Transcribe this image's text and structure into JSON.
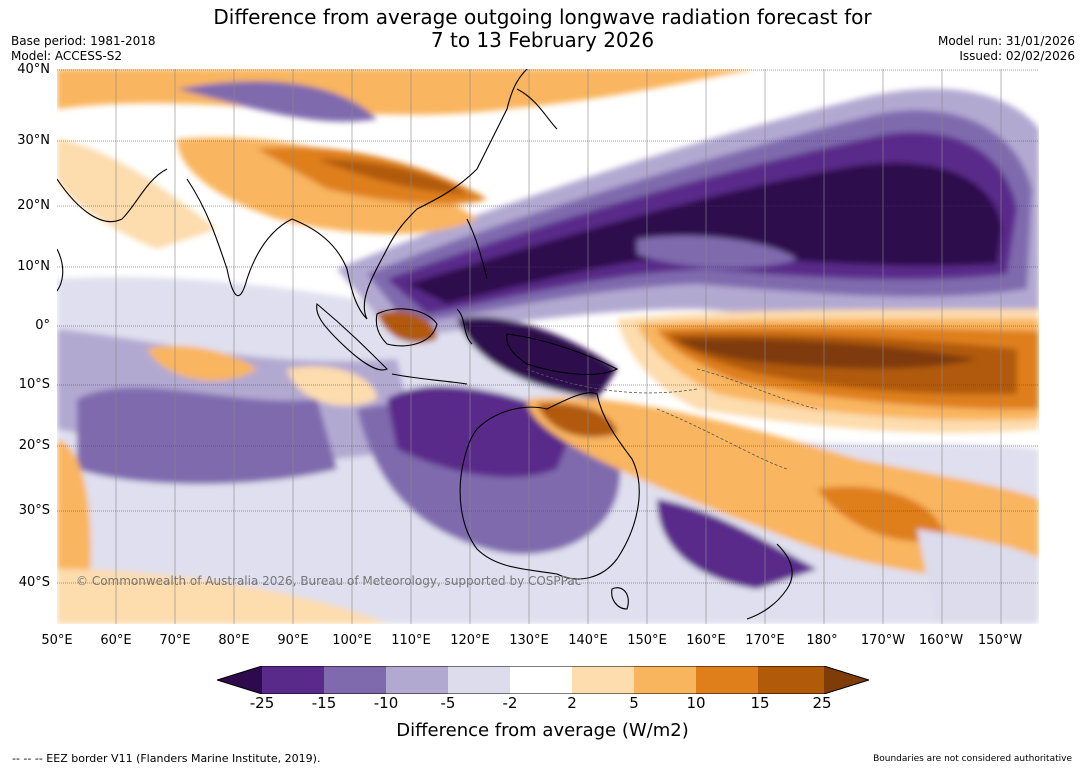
{
  "header": {
    "title_line1": "Difference from average outgoing longwave radiation forecast for",
    "title_line2": "7 to 13 February 2026",
    "base_period": "Base period: 1981-2018",
    "model": "Model: ACCESS-S2",
    "model_run": "Model run: 31/01/2026",
    "issued": "Issued: 02/02/2026"
  },
  "map": {
    "lat_labels": [
      "40°N",
      "30°N",
      "20°N",
      "10°N",
      "0°",
      "10°S",
      "20°S",
      "30°S",
      "40°S"
    ],
    "lon_labels": [
      "50°E",
      "60°E",
      "70°E",
      "80°E",
      "90°E",
      "100°E",
      "110°E",
      "120°E",
      "130°E",
      "140°E",
      "150°E",
      "160°E",
      "170°E",
      "180°",
      "170°W",
      "160°W",
      "150°W"
    ],
    "copyright": "© Commonwealth of Australia 2026, Bureau of Meteorology, supported by COSPPac"
  },
  "colorbar": {
    "title": "Difference from average (W/m2)",
    "ticks": [
      "-25",
      "-15",
      "-10",
      "-5",
      "-2",
      "2",
      "5",
      "10",
      "15",
      "25"
    ],
    "colors": [
      "#2d0a4e",
      "#5a2a8a",
      "#7f6aae",
      "#b2a9d1",
      "#dcdced",
      "#ffffff",
      "#fddcae",
      "#f9b55e",
      "#df7f1c",
      "#b15a0a",
      "#7f3b08"
    ]
  },
  "footer": {
    "eez": "--  --  -- EEZ border V11 (Flanders Marine Institute, 2019).",
    "boundaries": "Boundaries are not considered authoritative"
  }
}
